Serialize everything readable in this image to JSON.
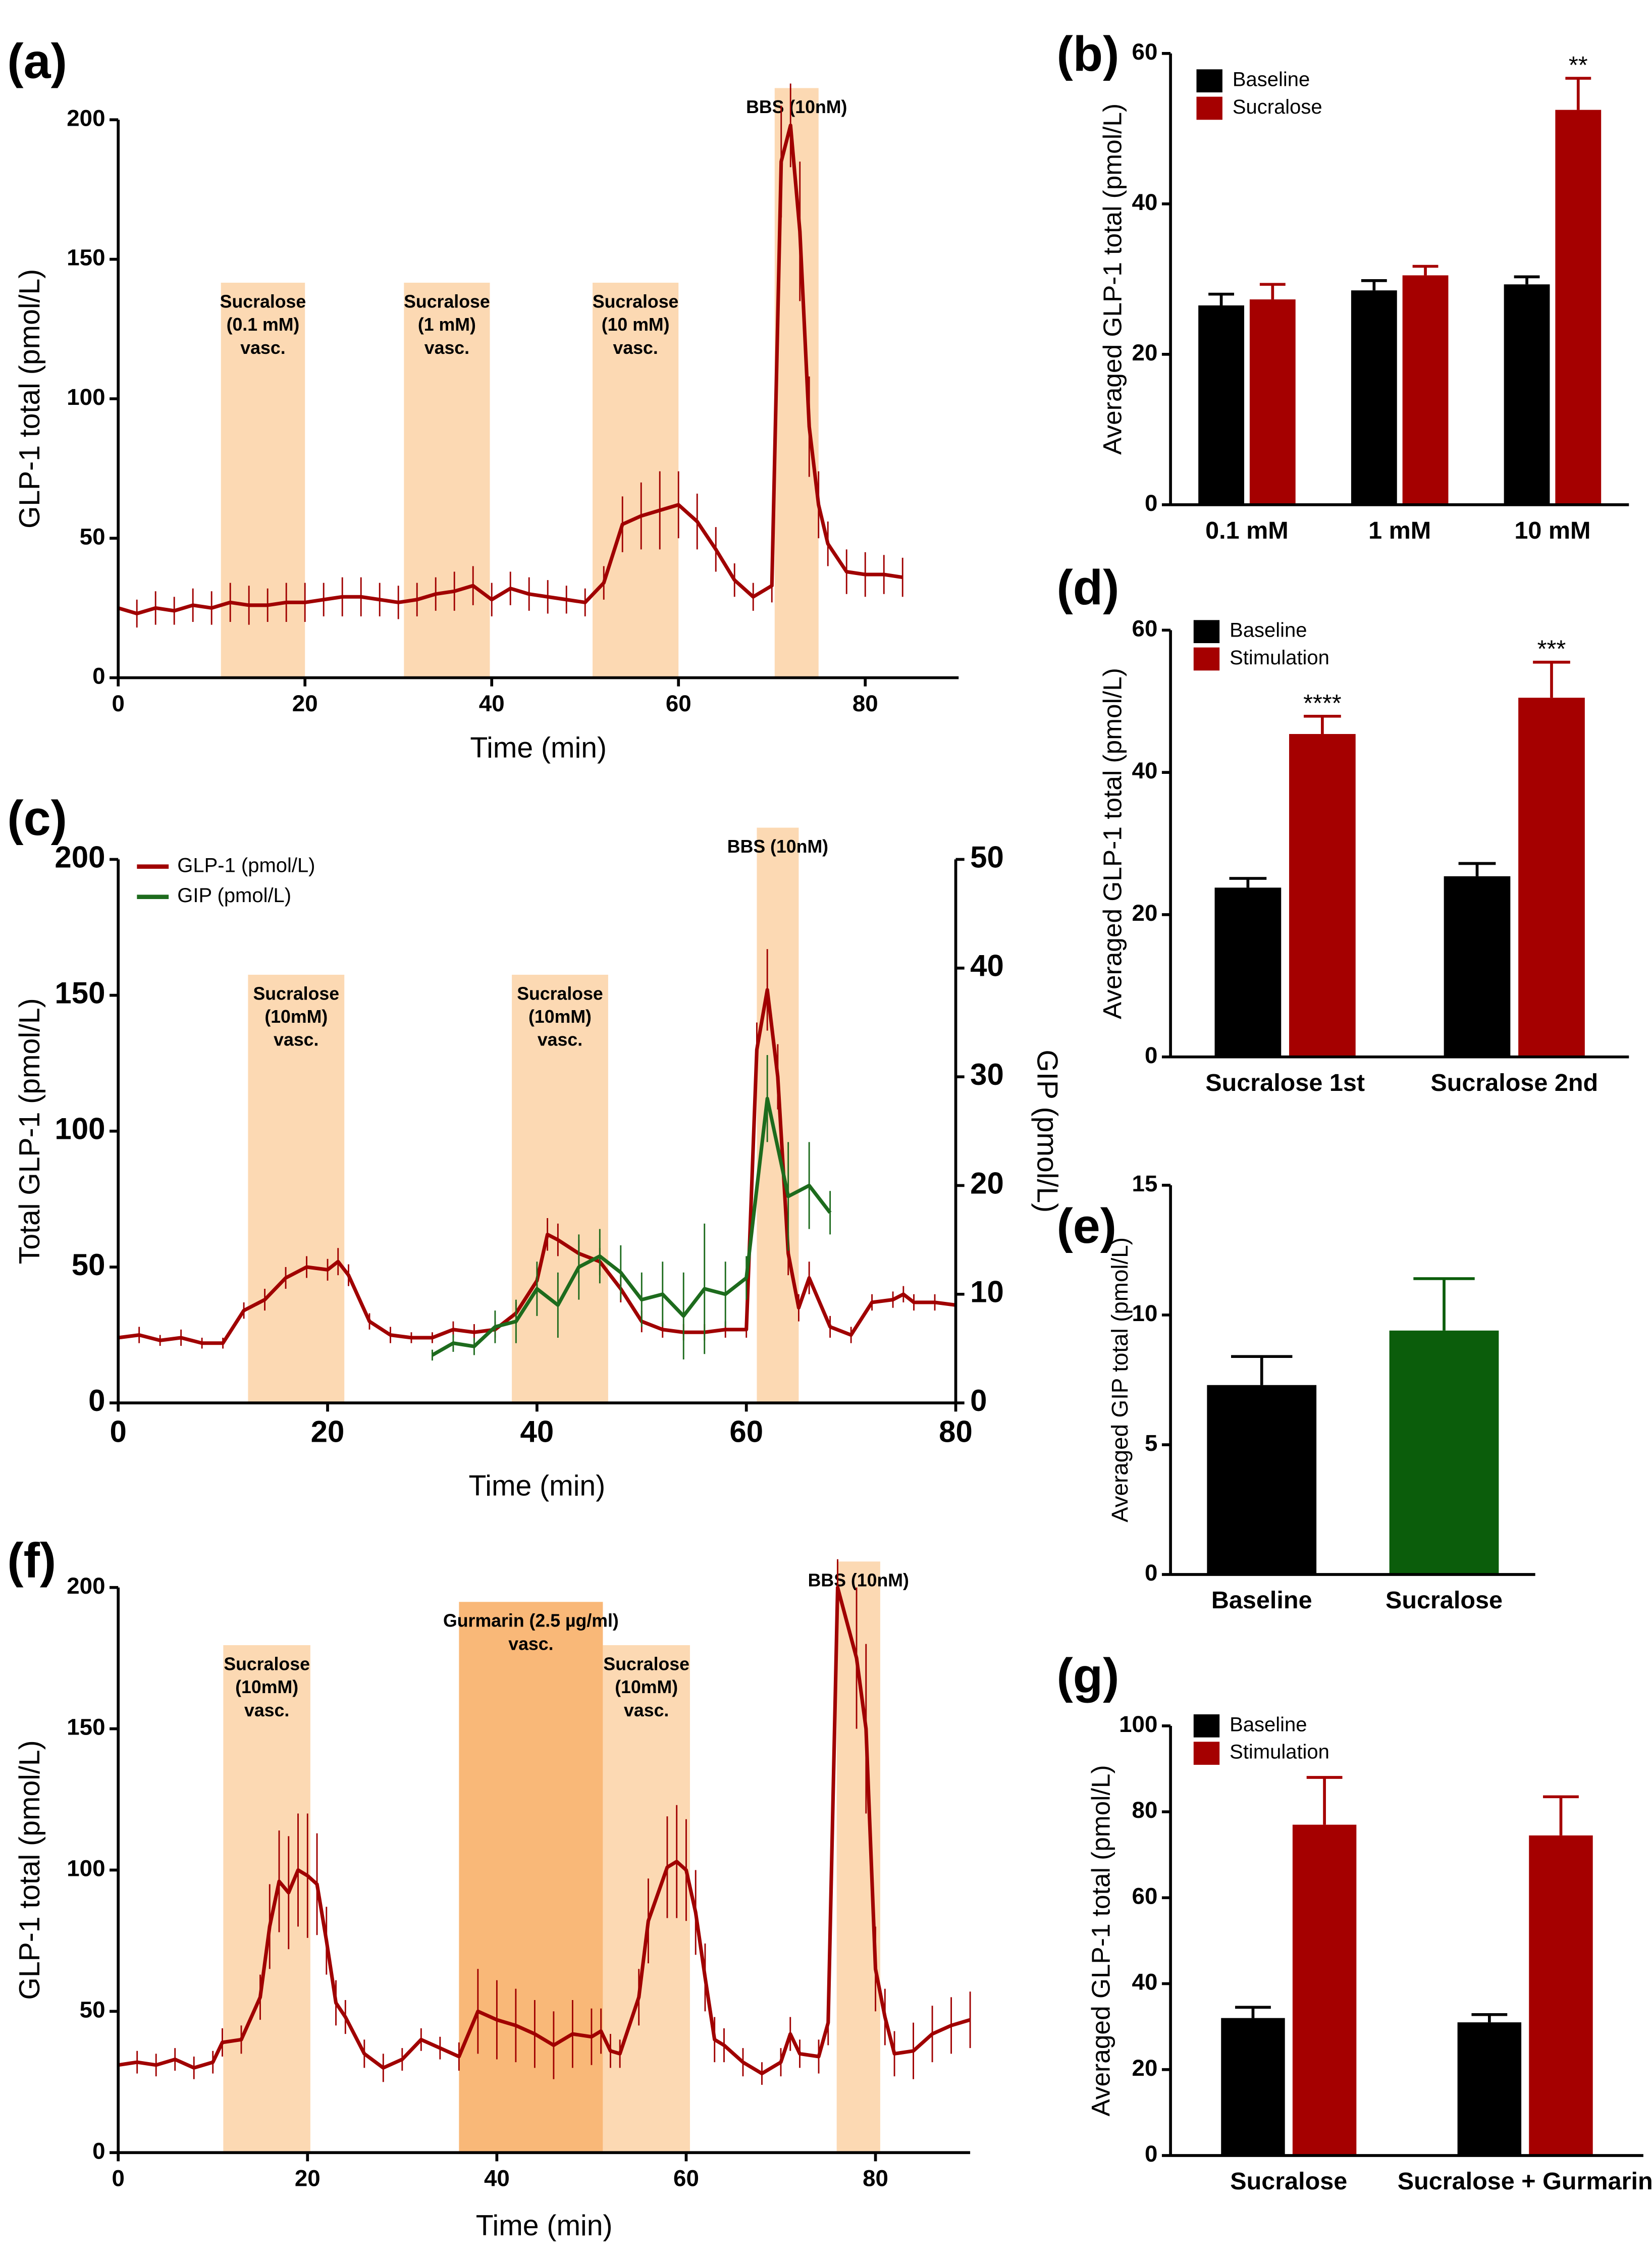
{
  "chart_data": [
    {
      "type": "line",
      "panel_label": "(a)",
      "xlabel": "Time (min)",
      "ylabel": "GLP-1 total (pmol/L)",
      "xlim": [
        0,
        90
      ],
      "xticks": [
        0,
        20,
        40,
        60,
        80
      ],
      "ylim": [
        0,
        200
      ],
      "yticks": [
        0,
        50,
        100,
        150,
        200
      ],
      "regions": [
        {
          "start": 11,
          "end": 20,
          "label": [
            "Sucralose",
            "(0.1 mM)",
            "vasc."
          ],
          "color": "#fcd9b3"
        },
        {
          "start": 30.6,
          "end": 39.8,
          "label": [
            "Sucralose",
            "(1 mM)",
            "vasc."
          ],
          "color": "#fcd9b3"
        },
        {
          "start": 50.8,
          "end": 60,
          "label": [
            "Sucralose",
            "(10 mM)",
            "vasc."
          ],
          "color": "#fcd9b3"
        },
        {
          "start": 70.3,
          "end": 75,
          "label": [
            "BBS (10nM)"
          ],
          "color": "#fcd9b3"
        }
      ],
      "series": [
        {
          "color": "#a00000",
          "x": [
            0,
            2,
            4,
            6,
            8,
            10,
            12,
            14,
            16,
            18,
            20,
            22,
            24,
            26,
            28,
            30,
            32,
            34,
            36,
            38,
            40,
            42,
            44,
            46,
            48,
            50,
            52,
            54,
            56,
            58,
            60,
            62,
            64,
            66,
            68,
            70,
            71,
            72,
            73,
            74,
            75,
            76,
            78,
            80,
            82,
            84
          ],
          "values": [
            25,
            23,
            25,
            24,
            26,
            25,
            27,
            26,
            26,
            27,
            27,
            28,
            29,
            29,
            28,
            27,
            28,
            30,
            31,
            33,
            28,
            32,
            30,
            29,
            28,
            27,
            34,
            55,
            58,
            60,
            62,
            56,
            46,
            35,
            29,
            33,
            185,
            198,
            160,
            90,
            62,
            48,
            38,
            37,
            37,
            36
          ],
          "errors": [
            6,
            5,
            6,
            5,
            6,
            6,
            7,
            7,
            6,
            7,
            7,
            6,
            7,
            7,
            6,
            6,
            6,
            6,
            7,
            7,
            6,
            6,
            6,
            6,
            5,
            5,
            6,
            10,
            12,
            14,
            12,
            10,
            8,
            6,
            5,
            6,
            20,
            15,
            25,
            18,
            12,
            8,
            8,
            8,
            7,
            7
          ]
        }
      ]
    },
    {
      "type": "bar",
      "panel_label": "(b)",
      "ylabel": "Averaged GLP-1 total (pmol/L)",
      "categories": [
        "0.1 mM",
        "1 mM",
        "10 mM"
      ],
      "ylim": [
        0,
        60
      ],
      "yticks": [
        0,
        20,
        40,
        60
      ],
      "series": [
        {
          "name": "Baseline",
          "color": "#000000",
          "values": [
            26.5,
            28.5,
            29.3
          ],
          "errors": [
            1.5,
            1.3,
            1
          ]
        },
        {
          "name": "Sucralose",
          "color": "#a50000",
          "values": [
            27.3,
            30.5,
            52.5
          ],
          "errors": [
            2,
            1.2,
            4.2
          ],
          "annotations": [
            null,
            null,
            "**"
          ]
        }
      ]
    },
    {
      "type": "line",
      "panel_label": "(c)",
      "xlabel": "Time (min)",
      "ylabel": "Total GLP-1 (pmol/L)",
      "y2label": "GIP (pmol/L)",
      "xlim": [
        0,
        80
      ],
      "xticks": [
        0,
        20,
        40,
        60,
        80
      ],
      "ylim": [
        0,
        200
      ],
      "yticks": [
        0,
        50,
        100,
        150,
        200
      ],
      "y2lim": [
        0,
        50
      ],
      "y2ticks": [
        0,
        10,
        20,
        30,
        40,
        50
      ],
      "regions": [
        {
          "start": 12.4,
          "end": 21.6,
          "label": [
            "Sucralose",
            "(10mM)",
            "vasc."
          ],
          "color": "#fcd9b3"
        },
        {
          "start": 37.6,
          "end": 46.8,
          "label": [
            "Sucralose",
            "(10mM)",
            "vasc."
          ],
          "color": "#fcd9b3"
        },
        {
          "start": 61,
          "end": 65,
          "label": [
            "BBS (10nM)"
          ],
          "color": "#fcd9b3"
        }
      ],
      "series": [
        {
          "name": "GLP-1 (pmol/L)",
          "color": "#a00000",
          "x": [
            0,
            2,
            4,
            6,
            8,
            10,
            12,
            14,
            16,
            18,
            20,
            21,
            22,
            24,
            26,
            28,
            30,
            32,
            34,
            36,
            38,
            40,
            41,
            42,
            44,
            46,
            48,
            50,
            52,
            54,
            56,
            58,
            60,
            61,
            62,
            63,
            64,
            65,
            66,
            68,
            70,
            72,
            74,
            75,
            76,
            78,
            80
          ],
          "values": [
            24,
            25,
            23,
            24,
            22,
            22,
            34,
            38,
            46,
            50,
            49,
            52,
            47,
            30,
            25,
            24,
            24,
            27,
            26,
            27,
            33,
            45,
            62,
            60,
            55,
            52,
            42,
            30,
            27,
            26,
            26,
            27,
            27,
            130,
            152,
            120,
            55,
            35,
            46,
            28,
            25,
            37,
            38,
            40,
            37,
            37,
            36
          ],
          "errors": [
            2,
            3,
            2,
            3,
            2,
            2,
            3,
            4,
            4,
            4,
            4,
            5,
            4,
            3,
            3,
            2,
            2,
            3,
            3,
            3,
            4,
            5,
            6,
            6,
            5,
            5,
            5,
            4,
            3,
            3,
            3,
            3,
            3,
            10,
            15,
            12,
            8,
            5,
            6,
            4,
            3,
            3,
            3,
            3,
            3,
            3,
            3
          ]
        },
        {
          "name": "GIP (pmol/L)",
          "color": "#1d6b1d",
          "axis": "y2",
          "x": [
            30,
            32,
            34,
            36,
            38,
            40,
            42,
            44,
            46,
            48,
            50,
            52,
            54,
            56,
            58,
            60,
            62,
            64,
            66,
            68
          ],
          "values": [
            4.4,
            5.5,
            5.2,
            7,
            7.5,
            10.5,
            9,
            12.5,
            13.5,
            12,
            9.5,
            10,
            8,
            10.5,
            10,
            11.5,
            28,
            19,
            20,
            17.5
          ],
          "errors": [
            0.5,
            0.8,
            0.8,
            1.5,
            2,
            2.5,
            3,
            3,
            2.5,
            2.5,
            2.5,
            3,
            4,
            6,
            3,
            2,
            4,
            5,
            4,
            2
          ]
        }
      ]
    },
    {
      "type": "bar",
      "panel_label": "(d)",
      "ylabel": "Averaged GLP-1 total (pmol/L)",
      "categories": [
        "Sucralose 1st",
        "Sucralose 2nd"
      ],
      "ylim": [
        0,
        60
      ],
      "yticks": [
        0,
        20,
        40,
        60
      ],
      "series": [
        {
          "name": "Baseline",
          "color": "#000000",
          "values": [
            23.8,
            25.4
          ],
          "errors": [
            1.3,
            1.8
          ]
        },
        {
          "name": "Stimulation",
          "color": "#a50000",
          "values": [
            45.4,
            50.5
          ],
          "errors": [
            2.5,
            5
          ],
          "annotations": [
            "****",
            "***"
          ]
        }
      ]
    },
    {
      "type": "bar",
      "panel_label": "(e)",
      "ylabel": "Averaged GIP total (pmol/L)",
      "categories": [
        "Baseline",
        "Sucralose"
      ],
      "ylim": [
        0,
        15
      ],
      "yticks": [
        0,
        5,
        10,
        15
      ],
      "values": [
        7.3,
        9.4
      ],
      "errors": [
        1.1,
        2
      ],
      "colors": [
        "#000000",
        "#0b5d0b"
      ]
    },
    {
      "type": "line",
      "panel_label": "(f)",
      "xlabel": "Time (min)",
      "ylabel": "GLP-1 total (pmol/L)",
      "xlim": [
        0,
        90
      ],
      "xticks": [
        0,
        20,
        40,
        60,
        80
      ],
      "ylim": [
        0,
        200
      ],
      "yticks": [
        0,
        50,
        100,
        150,
        200
      ],
      "regions": [
        {
          "start": 11.1,
          "end": 20.3,
          "label": [
            "Sucralose",
            "(10mM)",
            "vasc."
          ],
          "color": "#fcd9b3"
        },
        {
          "start": 36,
          "end": 51.2,
          "label": [
            "Gurmarin (2.5 µg/ml)",
            "vasc."
          ],
          "color": "#f9b878"
        },
        {
          "start": 51.2,
          "end": 60.4,
          "label": [
            "Sucralose",
            "(10mM)",
            "vasc."
          ],
          "color": "#fcd9b3"
        },
        {
          "start": 75.9,
          "end": 80.5,
          "label": [
            "BBS (10nM)"
          ],
          "color": "#fcd9b3"
        }
      ],
      "series": [
        {
          "color": "#a00000",
          "x": [
            0,
            2,
            4,
            6,
            8,
            10,
            11,
            13,
            15,
            16,
            17,
            18,
            19,
            20,
            21,
            22,
            23,
            24,
            26,
            28,
            30,
            32,
            34,
            36,
            38,
            40,
            42,
            44,
            46,
            48,
            50,
            51,
            52,
            53,
            55,
            56,
            58,
            59,
            60,
            61,
            62,
            63,
            64,
            66,
            68,
            70,
            71,
            72,
            74,
            75,
            76,
            78,
            79,
            80,
            81,
            82,
            84,
            86,
            88,
            90
          ],
          "values": [
            31,
            32,
            31,
            33,
            30,
            32,
            39,
            40,
            55,
            80,
            96,
            92,
            100,
            98,
            95,
            75,
            53,
            48,
            35,
            30,
            33,
            40,
            37,
            34,
            50,
            47,
            45,
            42,
            38,
            42,
            41,
            43,
            36,
            35,
            55,
            82,
            101,
            103,
            100,
            85,
            62,
            40,
            38,
            32,
            28,
            32,
            42,
            35,
            34,
            46,
            200,
            175,
            150,
            65,
            48,
            35,
            36,
            42,
            45,
            47
          ],
          "errors": [
            4,
            4,
            4,
            4,
            4,
            4,
            5,
            5,
            8,
            15,
            18,
            20,
            20,
            22,
            18,
            12,
            8,
            6,
            5,
            5,
            4,
            4,
            4,
            5,
            15,
            14,
            13,
            12,
            12,
            12,
            10,
            8,
            6,
            5,
            10,
            15,
            18,
            20,
            18,
            15,
            12,
            8,
            6,
            5,
            4,
            5,
            6,
            5,
            6,
            8,
            10,
            25,
            30,
            15,
            10,
            8,
            10,
            10,
            10,
            10
          ]
        }
      ]
    },
    {
      "type": "bar",
      "panel_label": "(g)",
      "ylabel": "Averaged GLP-1 total (pmol/L)",
      "categories": [
        "Sucralose",
        "Sucralose + Gurmarin"
      ],
      "ylim": [
        0,
        100
      ],
      "yticks": [
        0,
        20,
        40,
        60,
        80,
        100
      ],
      "series": [
        {
          "name": "Baseline",
          "color": "#000000",
          "values": [
            32,
            31
          ],
          "errors": [
            2.5,
            1.8
          ]
        },
        {
          "name": "Stimulation",
          "color": "#a50000",
          "values": [
            77,
            74.5
          ],
          "errors": [
            11,
            9
          ]
        }
      ]
    }
  ]
}
